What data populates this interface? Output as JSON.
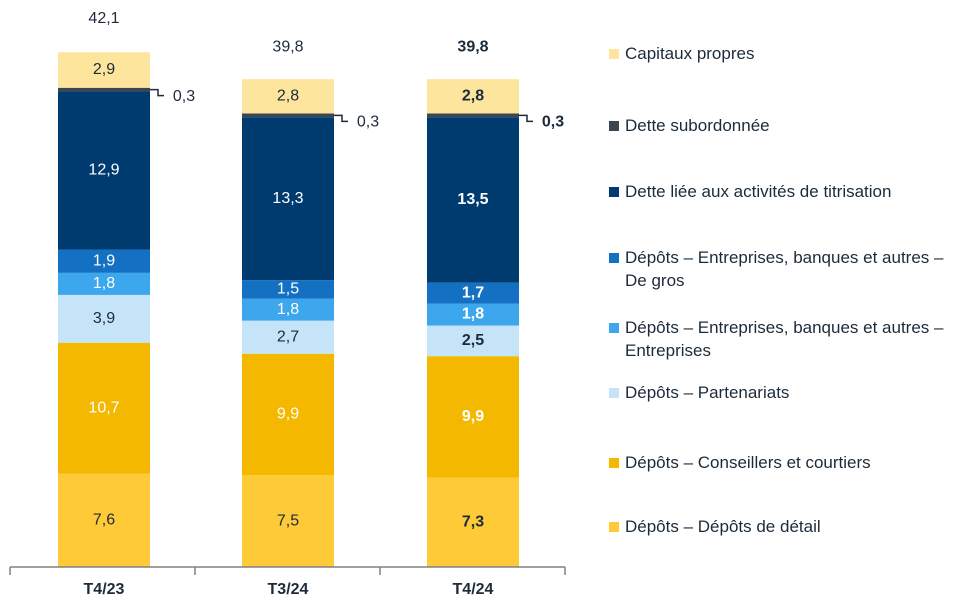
{
  "chart_data": {
    "type": "stacked-bar",
    "categories": [
      "T4/23",
      "T3/24",
      "T4/24"
    ],
    "series": [
      {
        "name": "Dépôts – Dépôts de détail",
        "color": "#ffca38",
        "values": [
          7.6,
          7.5,
          7.3
        ],
        "value_labels": [
          "7,6",
          "7,5",
          "7,3"
        ]
      },
      {
        "name": "Dépôts – Conseillers et courtiers",
        "color": "#f5b800",
        "values": [
          10.7,
          9.9,
          9.9
        ],
        "value_labels": [
          "10,7",
          "9,9",
          "9,9"
        ]
      },
      {
        "name": "Dépôts – Partenariats",
        "color": "#c6e4f8",
        "values": [
          3.9,
          2.7,
          2.5
        ],
        "value_labels": [
          "3,9",
          "2,7",
          "2,5"
        ]
      },
      {
        "name": "Dépôts – Entreprises, banques et autres – Entreprises",
        "color": "#3ca7ec",
        "values": [
          1.8,
          1.8,
          1.8
        ],
        "value_labels": [
          "1,8",
          "1,8",
          "1,8"
        ]
      },
      {
        "name": "Dépôts – Entreprises, banques et autres – De gros",
        "color": "#1470c2",
        "values": [
          1.9,
          1.5,
          1.7
        ],
        "value_labels": [
          "1,9",
          "1,5",
          "1,7"
        ]
      },
      {
        "name": "Dette liée aux activités de titrisation",
        "color": "#003b70",
        "values": [
          12.9,
          13.3,
          13.5
        ],
        "value_labels": [
          "12,9",
          "13,3",
          "13,5"
        ]
      },
      {
        "name": "Dette subordonnée",
        "color": "#3c4552",
        "values": [
          0.3,
          0.3,
          0.3
        ],
        "value_labels": [
          "0,3",
          "0,3",
          "0,3"
        ]
      },
      {
        "name": "Capitaux propres",
        "color": "#fde59d",
        "values": [
          2.9,
          2.8,
          2.8
        ],
        "value_labels": [
          "2,9",
          "2,8",
          "2,8"
        ]
      }
    ],
    "totals": {
      "values": [
        42.1,
        39.8,
        39.8
      ],
      "value_labels": [
        "42,1",
        "39,8",
        "39,8"
      ]
    }
  }
}
